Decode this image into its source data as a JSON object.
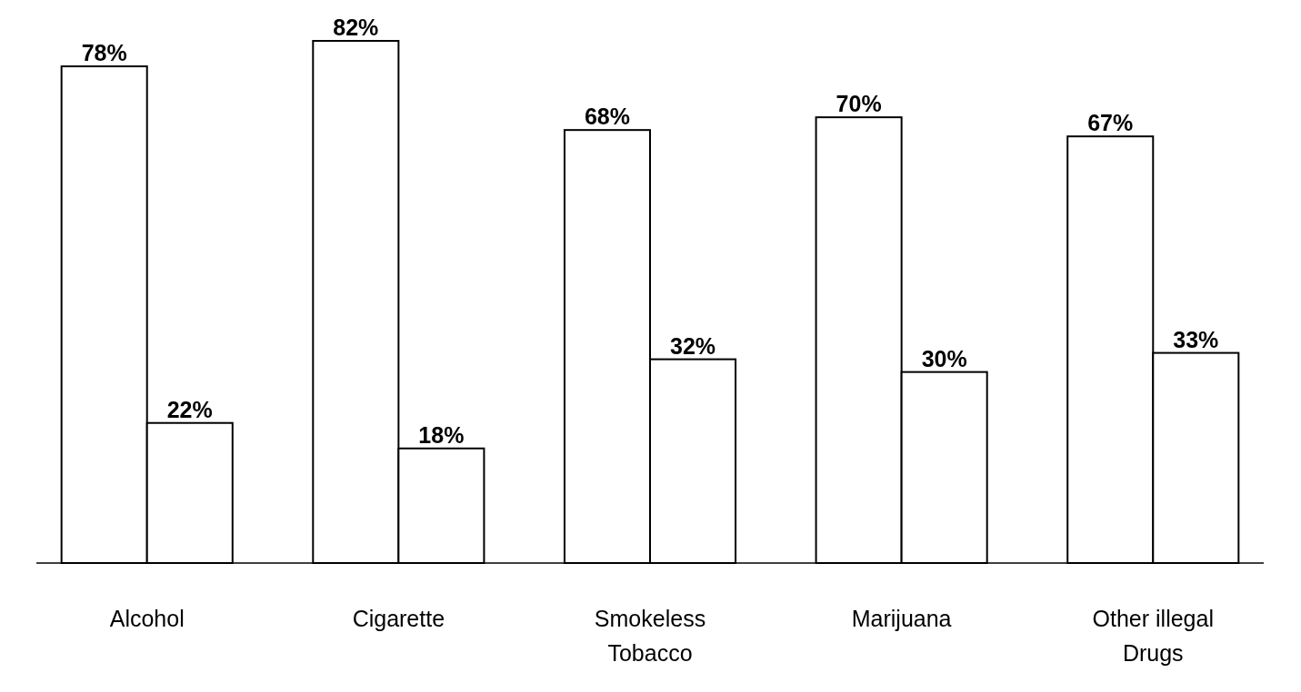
{
  "chart_data": {
    "type": "bar",
    "categories": [
      "Alcohol",
      "Cigarette",
      "Smokeless Tobacco",
      "Marijuana",
      "Other illegal Drugs"
    ],
    "series": [
      {
        "color": "#ffffff",
        "values": [
          78,
          82,
          68,
          70,
          67
        ],
        "value_labels": [
          "78%",
          "82%",
          "68%",
          "70%",
          "67%"
        ]
      },
      {
        "color": "#ffffff",
        "values": [
          22,
          18,
          32,
          30,
          33
        ],
        "value_labels": [
          "22%",
          "18%",
          "32%",
          "30%",
          "33%"
        ]
      }
    ]
  }
}
